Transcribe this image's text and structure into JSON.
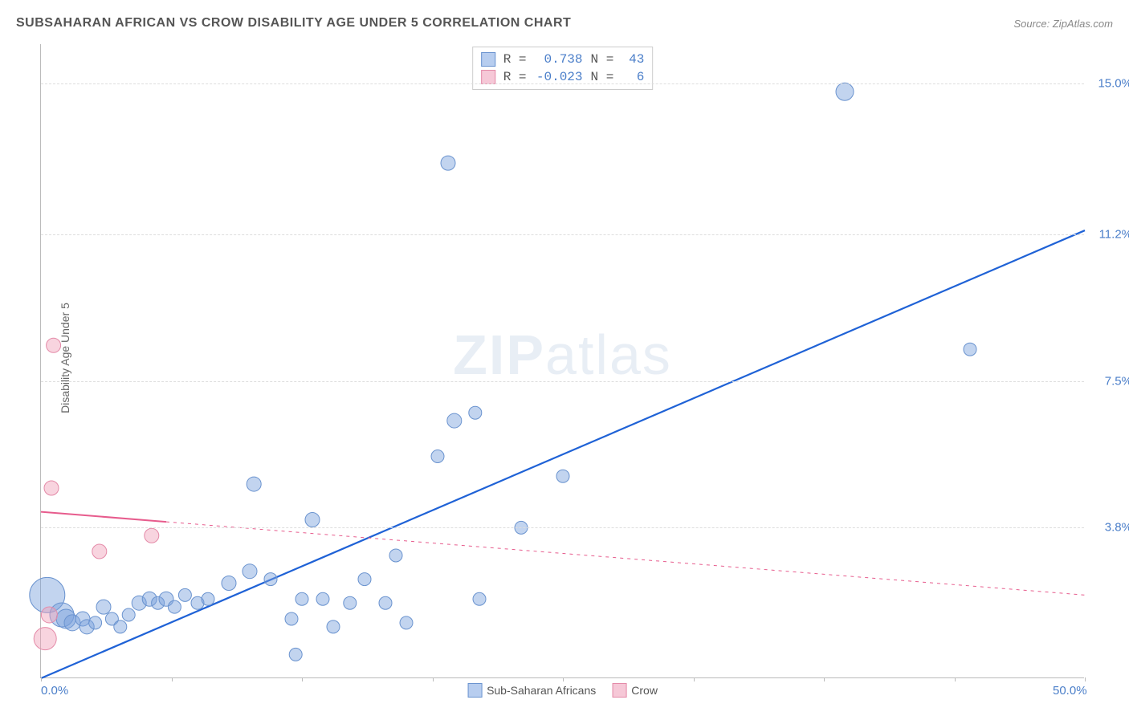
{
  "header": {
    "title": "SUBSAHARAN AFRICAN VS CROW DISABILITY AGE UNDER 5 CORRELATION CHART",
    "source_prefix": "Source: ",
    "source_link": "ZipAtlas.com"
  },
  "chart": {
    "type": "scatter",
    "y_label": "Disability Age Under 5",
    "xlim": [
      0,
      50
    ],
    "ylim": [
      0,
      16
    ],
    "x_ticks": [
      {
        "pos": 0.0,
        "label": "0.0%"
      },
      {
        "pos": 6.25,
        "label": ""
      },
      {
        "pos": 12.5,
        "label": ""
      },
      {
        "pos": 18.75,
        "label": ""
      },
      {
        "pos": 25.0,
        "label": ""
      },
      {
        "pos": 31.25,
        "label": ""
      },
      {
        "pos": 37.5,
        "label": ""
      },
      {
        "pos": 43.75,
        "label": ""
      },
      {
        "pos": 50.0,
        "label": "50.0%"
      }
    ],
    "y_ticks": [
      {
        "pos": 3.8,
        "label": "3.8%"
      },
      {
        "pos": 7.5,
        "label": "7.5%"
      },
      {
        "pos": 11.2,
        "label": "11.2%"
      },
      {
        "pos": 15.0,
        "label": "15.0%"
      }
    ],
    "background_color": "#ffffff",
    "grid_color": "#dddddd",
    "watermark": {
      "zip": "ZIP",
      "atlas": "atlas"
    },
    "series": [
      {
        "name": "Sub-Saharan Africans",
        "color_fill": "rgba(120,160,220,0.45)",
        "color_stroke": "#6a93cf",
        "swatch_fill": "#b7cdef",
        "swatch_border": "#6a93cf",
        "R": "0.738",
        "N": "43",
        "trend": {
          "x1": 0,
          "y1": 0.0,
          "x2": 50,
          "y2": 11.3,
          "dash_after_x": null,
          "stroke": "#1f62d6",
          "width": 2.2
        },
        "points": [
          {
            "x": 0.3,
            "y": 2.1,
            "r": 22
          },
          {
            "x": 1.0,
            "y": 1.6,
            "r": 15
          },
          {
            "x": 1.2,
            "y": 1.5,
            "r": 12
          },
          {
            "x": 1.5,
            "y": 1.4,
            "r": 10
          },
          {
            "x": 2.0,
            "y": 1.5,
            "r": 9
          },
          {
            "x": 2.2,
            "y": 1.3,
            "r": 9
          },
          {
            "x": 2.6,
            "y": 1.4,
            "r": 8
          },
          {
            "x": 3.0,
            "y": 1.8,
            "r": 9
          },
          {
            "x": 3.4,
            "y": 1.5,
            "r": 8
          },
          {
            "x": 3.8,
            "y": 1.3,
            "r": 8
          },
          {
            "x": 4.2,
            "y": 1.6,
            "r": 8
          },
          {
            "x": 4.7,
            "y": 1.9,
            "r": 9
          },
          {
            "x": 5.2,
            "y": 2.0,
            "r": 9
          },
          {
            "x": 5.6,
            "y": 1.9,
            "r": 8
          },
          {
            "x": 6.0,
            "y": 2.0,
            "r": 9
          },
          {
            "x": 6.4,
            "y": 1.8,
            "r": 8
          },
          {
            "x": 6.9,
            "y": 2.1,
            "r": 8
          },
          {
            "x": 7.5,
            "y": 1.9,
            "r": 8
          },
          {
            "x": 8.0,
            "y": 2.0,
            "r": 8
          },
          {
            "x": 9.0,
            "y": 2.4,
            "r": 9
          },
          {
            "x": 10.0,
            "y": 2.7,
            "r": 9
          },
          {
            "x": 10.2,
            "y": 4.9,
            "r": 9
          },
          {
            "x": 11.0,
            "y": 2.5,
            "r": 8
          },
          {
            "x": 12.0,
            "y": 1.5,
            "r": 8
          },
          {
            "x": 12.2,
            "y": 0.6,
            "r": 8
          },
          {
            "x": 12.5,
            "y": 2.0,
            "r": 8
          },
          {
            "x": 13.0,
            "y": 4.0,
            "r": 9
          },
          {
            "x": 13.5,
            "y": 2.0,
            "r": 8
          },
          {
            "x": 14.0,
            "y": 1.3,
            "r": 8
          },
          {
            "x": 14.8,
            "y": 1.9,
            "r": 8
          },
          {
            "x": 15.5,
            "y": 2.5,
            "r": 8
          },
          {
            "x": 16.5,
            "y": 1.9,
            "r": 8
          },
          {
            "x": 17.0,
            "y": 3.1,
            "r": 8
          },
          {
            "x": 17.5,
            "y": 1.4,
            "r": 8
          },
          {
            "x": 19.0,
            "y": 5.6,
            "r": 8
          },
          {
            "x": 19.5,
            "y": 13.0,
            "r": 9
          },
          {
            "x": 19.8,
            "y": 6.5,
            "r": 9
          },
          {
            "x": 20.8,
            "y": 6.7,
            "r": 8
          },
          {
            "x": 21.0,
            "y": 2.0,
            "r": 8
          },
          {
            "x": 23.0,
            "y": 3.8,
            "r": 8
          },
          {
            "x": 25.0,
            "y": 5.1,
            "r": 8
          },
          {
            "x": 38.5,
            "y": 14.8,
            "r": 11
          },
          {
            "x": 44.5,
            "y": 8.3,
            "r": 8
          }
        ]
      },
      {
        "name": "Crow",
        "color_fill": "rgba(240,160,185,0.45)",
        "color_stroke": "#e48aa8",
        "swatch_fill": "#f6c8d7",
        "swatch_border": "#e48aa8",
        "R": "-0.023",
        "N": "6",
        "trend": {
          "x1": 0,
          "y1": 4.2,
          "x2": 50,
          "y2": 2.1,
          "dash_after_x": 6.0,
          "stroke": "#e75c8d",
          "width": 2.0
        },
        "points": [
          {
            "x": 0.2,
            "y": 1.0,
            "r": 14
          },
          {
            "x": 0.4,
            "y": 1.6,
            "r": 10
          },
          {
            "x": 0.5,
            "y": 4.8,
            "r": 9
          },
          {
            "x": 0.6,
            "y": 8.4,
            "r": 9
          },
          {
            "x": 2.8,
            "y": 3.2,
            "r": 9
          },
          {
            "x": 5.3,
            "y": 3.6,
            "r": 9
          }
        ]
      }
    ],
    "bottom_legend": [
      {
        "label": "Sub-Saharan Africans",
        "fill": "#b7cdef",
        "border": "#6a93cf"
      },
      {
        "label": "Crow",
        "fill": "#f6c8d7",
        "border": "#e48aa8"
      }
    ]
  }
}
